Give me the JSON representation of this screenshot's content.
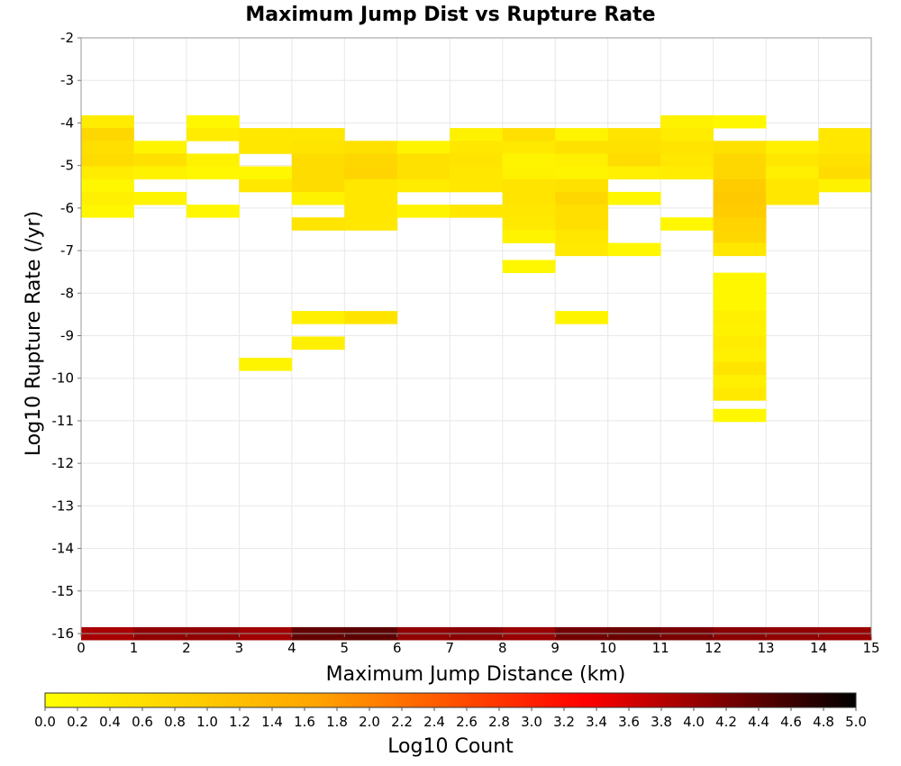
{
  "chart_data": {
    "type": "heatmap",
    "title": "Maximum Jump Dist vs Rupture Rate",
    "xlabel": "Maximum Jump Distance (km)",
    "ylabel": "Log10 Rupture Rate (/yr)",
    "xlim": [
      0,
      15
    ],
    "ylim": [
      -16,
      -2
    ],
    "x_bin_width": 1,
    "y_bin_height": 0.3,
    "x_ticks": [
      "0",
      "1",
      "2",
      "3",
      "4",
      "5",
      "6",
      "7",
      "8",
      "9",
      "10",
      "11",
      "12",
      "13",
      "14",
      "15"
    ],
    "y_ticks": [
      "-2",
      "-3",
      "-4",
      "-5",
      "-6",
      "-7",
      "-8",
      "-9",
      "-10",
      "-11",
      "-12",
      "-13",
      "-14",
      "-15",
      "-16"
    ],
    "grid": true,
    "colorbar": {
      "label": "Log10 Count",
      "range": [
        0.0,
        5.0
      ],
      "ticks": [
        "0.0",
        "0.2",
        "0.4",
        "0.6",
        "0.8",
        "1.0",
        "1.2",
        "1.4",
        "1.6",
        "1.8",
        "2.0",
        "2.2",
        "2.4",
        "2.6",
        "2.8",
        "3.0",
        "3.2",
        "3.4",
        "3.6",
        "3.8",
        "4.0",
        "4.2",
        "4.4",
        "4.6",
        "4.8",
        "5.0"
      ],
      "colors": [
        "#ffff00",
        "#ffa500",
        "#ff0000",
        "#000000"
      ]
    },
    "columns": [
      {
        "x": 0,
        "cells": [
          [
            -3.97,
            0.35
          ],
          [
            -4.27,
            0.75
          ],
          [
            -4.57,
            0.6
          ],
          [
            -4.87,
            0.65
          ],
          [
            -5.17,
            0.35
          ],
          [
            -5.47,
            0.15
          ],
          [
            -5.77,
            0.3
          ],
          [
            -6.07,
            0.15
          ],
          [
            -16.0,
            3.9
          ]
        ]
      },
      {
        "x": 1,
        "cells": [
          [
            -4.57,
            0.2
          ],
          [
            -4.87,
            0.55
          ],
          [
            -5.17,
            0.25
          ],
          [
            -5.77,
            0.2
          ],
          [
            -16.0,
            4.05
          ]
        ]
      },
      {
        "x": 2,
        "cells": [
          [
            -3.97,
            0.15
          ],
          [
            -4.27,
            0.35
          ],
          [
            -4.87,
            0.25
          ],
          [
            -5.17,
            0.15
          ],
          [
            -6.07,
            0.15
          ],
          [
            -16.0,
            4.05
          ]
        ]
      },
      {
        "x": 3,
        "cells": [
          [
            -4.27,
            0.45
          ],
          [
            -4.57,
            0.45
          ],
          [
            -5.17,
            0.15
          ],
          [
            -5.47,
            0.45
          ],
          [
            -9.67,
            0.2
          ],
          [
            -16.0,
            3.95
          ]
        ]
      },
      {
        "x": 4,
        "cells": [
          [
            -4.27,
            0.45
          ],
          [
            -4.57,
            0.5
          ],
          [
            -4.87,
            0.65
          ],
          [
            -5.17,
            0.65
          ],
          [
            -5.47,
            0.65
          ],
          [
            -5.77,
            0.25
          ],
          [
            -6.37,
            0.5
          ],
          [
            -8.57,
            0.3
          ],
          [
            -9.17,
            0.3
          ],
          [
            -16.0,
            4.35
          ]
        ]
      },
      {
        "x": 5,
        "cells": [
          [
            -4.57,
            0.55
          ],
          [
            -4.87,
            0.75
          ],
          [
            -5.17,
            0.8
          ],
          [
            -5.47,
            0.45
          ],
          [
            -5.77,
            0.45
          ],
          [
            -6.07,
            0.45
          ],
          [
            -6.37,
            0.45
          ],
          [
            -8.57,
            0.5
          ],
          [
            -16.0,
            4.4
          ]
        ]
      },
      {
        "x": 6,
        "cells": [
          [
            -4.57,
            0.2
          ],
          [
            -4.87,
            0.55
          ],
          [
            -5.17,
            0.55
          ],
          [
            -5.47,
            0.35
          ],
          [
            -6.07,
            0.2
          ],
          [
            -16.0,
            4.05
          ]
        ]
      },
      {
        "x": 7,
        "cells": [
          [
            -4.27,
            0.25
          ],
          [
            -4.57,
            0.45
          ],
          [
            -4.87,
            0.5
          ],
          [
            -5.17,
            0.45
          ],
          [
            -5.47,
            0.45
          ],
          [
            -6.07,
            0.45
          ],
          [
            -16.0,
            4.1
          ]
        ]
      },
      {
        "x": 8,
        "cells": [
          [
            -4.27,
            0.6
          ],
          [
            -4.57,
            0.4
          ],
          [
            -4.87,
            0.2
          ],
          [
            -5.17,
            0.25
          ],
          [
            -5.47,
            0.5
          ],
          [
            -5.77,
            0.5
          ],
          [
            -6.07,
            0.45
          ],
          [
            -6.37,
            0.4
          ],
          [
            -6.67,
            0.2
          ],
          [
            -7.37,
            0.15
          ],
          [
            -16.0,
            4.0
          ]
        ]
      },
      {
        "x": 9,
        "cells": [
          [
            -4.27,
            0.2
          ],
          [
            -4.57,
            0.55
          ],
          [
            -4.87,
            0.3
          ],
          [
            -5.17,
            0.2
          ],
          [
            -5.47,
            0.55
          ],
          [
            -5.77,
            0.75
          ],
          [
            -6.07,
            0.6
          ],
          [
            -6.37,
            0.6
          ],
          [
            -6.67,
            0.45
          ],
          [
            -6.97,
            0.4
          ],
          [
            -8.57,
            0.2
          ],
          [
            -16.0,
            4.25
          ]
        ]
      },
      {
        "x": 10,
        "cells": [
          [
            -4.27,
            0.5
          ],
          [
            -4.57,
            0.55
          ],
          [
            -4.87,
            0.65
          ],
          [
            -5.17,
            0.3
          ],
          [
            -5.77,
            0.15
          ],
          [
            -6.97,
            0.15
          ],
          [
            -16.0,
            4.3
          ]
        ]
      },
      {
        "x": 11,
        "cells": [
          [
            -3.97,
            0.25
          ],
          [
            -4.27,
            0.35
          ],
          [
            -4.57,
            0.5
          ],
          [
            -4.87,
            0.45
          ],
          [
            -5.17,
            0.35
          ],
          [
            -6.37,
            0.15
          ],
          [
            -16.0,
            4.2
          ]
        ]
      },
      {
        "x": 12,
        "cells": [
          [
            -3.97,
            0.15
          ],
          [
            -4.57,
            0.55
          ],
          [
            -4.87,
            0.75
          ],
          [
            -5.17,
            0.75
          ],
          [
            -5.47,
            0.95
          ],
          [
            -5.77,
            1.0
          ],
          [
            -6.07,
            0.95
          ],
          [
            -6.37,
            0.8
          ],
          [
            -6.67,
            0.75
          ],
          [
            -6.97,
            0.45
          ],
          [
            -7.67,
            0.15
          ],
          [
            -7.97,
            0.15
          ],
          [
            -8.27,
            0.15
          ],
          [
            -8.57,
            0.3
          ],
          [
            -8.87,
            0.25
          ],
          [
            -9.17,
            0.35
          ],
          [
            -9.47,
            0.3
          ],
          [
            -9.77,
            0.5
          ],
          [
            -10.07,
            0.3
          ],
          [
            -10.37,
            0.4
          ],
          [
            -10.87,
            0.15
          ],
          [
            -16.0,
            4.1
          ]
        ]
      },
      {
        "x": 13,
        "cells": [
          [
            -4.57,
            0.3
          ],
          [
            -4.87,
            0.45
          ],
          [
            -5.17,
            0.3
          ],
          [
            -5.47,
            0.45
          ],
          [
            -5.77,
            0.45
          ],
          [
            -16.0,
            4.05
          ]
        ]
      },
      {
        "x": 14,
        "cells": [
          [
            -4.27,
            0.45
          ],
          [
            -4.57,
            0.45
          ],
          [
            -4.87,
            0.55
          ],
          [
            -5.17,
            0.65
          ],
          [
            -5.47,
            0.25
          ],
          [
            -16.0,
            4.0
          ]
        ]
      }
    ]
  }
}
